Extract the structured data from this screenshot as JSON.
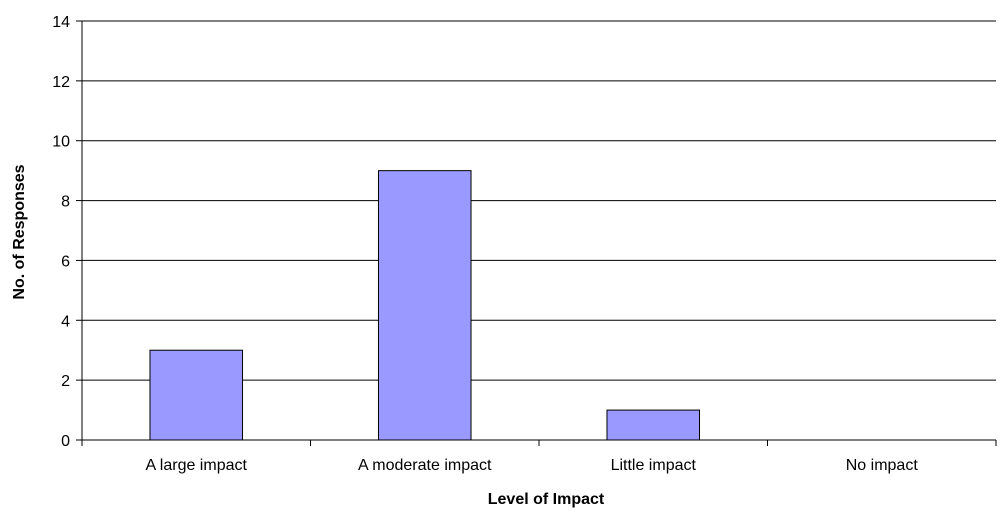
{
  "chart_data": {
    "type": "bar",
    "title": "",
    "xlabel": "Level of Impact",
    "ylabel": "No. of Responses",
    "categories": [
      "A large impact",
      "A moderate impact",
      "Little impact",
      "No impact"
    ],
    "values": [
      3,
      9,
      1,
      0
    ],
    "ylim": [
      0,
      14
    ],
    "yticks": [
      0,
      2,
      4,
      6,
      8,
      10,
      12,
      14
    ],
    "grid": true,
    "legend": "none",
    "colors": {
      "bar_fill": "#9999ff",
      "bar_stroke": "#000000",
      "grid": "#000000",
      "axis": "#000000"
    }
  }
}
